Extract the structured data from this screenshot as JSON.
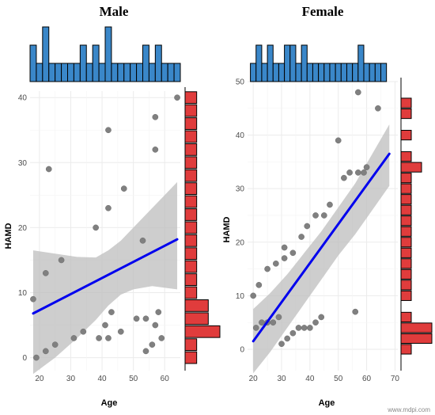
{
  "footer": {
    "watermark": "www.mdpi.com"
  },
  "chart_data": [
    {
      "type": "scatter",
      "title": "Male",
      "xlabel": "Age",
      "ylabel": "HAMD",
      "xlim": [
        17,
        65
      ],
      "ylim": [
        -2,
        41
      ],
      "xticks": [
        20,
        30,
        40,
        50,
        60
      ],
      "yticks": [
        0,
        10,
        20,
        30,
        40
      ],
      "grid": true,
      "point_color": "#808080",
      "line_color": "#0000ee",
      "band_color": "#bdbdbd",
      "points": [
        [
          18,
          9
        ],
        [
          19,
          0
        ],
        [
          22,
          13
        ],
        [
          22,
          1
        ],
        [
          23,
          29
        ],
        [
          25,
          2
        ],
        [
          27,
          15
        ],
        [
          31,
          3
        ],
        [
          34,
          4
        ],
        [
          38,
          20
        ],
        [
          39,
          3
        ],
        [
          41,
          5
        ],
        [
          42,
          23
        ],
        [
          42,
          35
        ],
        [
          42,
          3
        ],
        [
          43,
          7
        ],
        [
          46,
          4
        ],
        [
          47,
          26
        ],
        [
          51,
          6
        ],
        [
          53,
          18
        ],
        [
          54,
          6
        ],
        [
          54,
          1
        ],
        [
          56,
          2
        ],
        [
          57,
          5
        ],
        [
          57,
          32
        ],
        [
          57,
          37
        ],
        [
          58,
          7
        ],
        [
          59,
          3
        ],
        [
          64,
          40
        ]
      ],
      "fit": {
        "x": [
          18,
          64
        ],
        "y": [
          6.8,
          18.2
        ]
      },
      "ci": {
        "x": [
          18,
          25,
          32,
          38,
          42,
          46,
          50,
          56,
          64
        ],
        "upper": [
          16.5,
          16.0,
          15.5,
          15.4,
          16.5,
          18.0,
          20.0,
          23.0,
          27.0
        ],
        "lower": [
          -2.5,
          0.0,
          3.0,
          5.8,
          8.0,
          9.7,
          10.5,
          11.0,
          10.5
        ]
      },
      "top_hist": {
        "bins": [
          18,
          20,
          22,
          24,
          26,
          28,
          30,
          32,
          34,
          36,
          38,
          40,
          42,
          44,
          46,
          48,
          50,
          52,
          54,
          56,
          58,
          60,
          62,
          64
        ],
        "counts": [
          2,
          1,
          3,
          1,
          1,
          1,
          1,
          1,
          2,
          1,
          2,
          1,
          3,
          1,
          1,
          1,
          1,
          1,
          2,
          1,
          2,
          1,
          1,
          1
        ]
      },
      "side_hist": {
        "bins": [
          0,
          2,
          4,
          6,
          8,
          10,
          12,
          14,
          16,
          18,
          20,
          22,
          24,
          26,
          28,
          30,
          32,
          34,
          36,
          38,
          40
        ],
        "counts": [
          1,
          1,
          3,
          2,
          2,
          1,
          1,
          1,
          1,
          1,
          1,
          1,
          1,
          1,
          1,
          1,
          1,
          1,
          1,
          1,
          1
        ]
      }
    },
    {
      "type": "scatter",
      "title": "Female",
      "xlabel": "Age",
      "ylabel": "HAMD",
      "xlim": [
        18,
        71
      ],
      "ylim": [
        -4,
        50
      ],
      "xticks": [
        20,
        30,
        40,
        50,
        60,
        70
      ],
      "yticks": [
        0,
        10,
        20,
        30,
        40,
        50
      ],
      "grid": true,
      "point_color": "#808080",
      "line_color": "#0000ee",
      "band_color": "#bdbdbd",
      "points": [
        [
          20,
          10
        ],
        [
          21,
          4
        ],
        [
          22,
          12
        ],
        [
          23,
          5
        ],
        [
          25,
          15
        ],
        [
          25,
          5
        ],
        [
          27,
          5
        ],
        [
          28,
          16
        ],
        [
          29,
          6
        ],
        [
          30,
          1
        ],
        [
          31,
          19
        ],
        [
          31,
          17
        ],
        [
          32,
          2
        ],
        [
          34,
          3
        ],
        [
          34,
          18
        ],
        [
          36,
          4
        ],
        [
          37,
          21
        ],
        [
          38,
          4
        ],
        [
          39,
          23
        ],
        [
          40,
          4
        ],
        [
          42,
          25
        ],
        [
          42,
          5
        ],
        [
          44,
          6
        ],
        [
          45,
          25
        ],
        [
          47,
          27
        ],
        [
          50,
          39
        ],
        [
          52,
          32
        ],
        [
          54,
          33
        ],
        [
          56,
          7
        ],
        [
          57,
          48
        ],
        [
          57,
          33
        ],
        [
          59,
          33
        ],
        [
          60,
          34
        ],
        [
          64,
          45
        ]
      ],
      "fit": {
        "x": [
          20,
          68
        ],
        "y": [
          1.5,
          36.5
        ]
      },
      "ci": {
        "x": [
          20,
          26,
          32,
          38,
          44,
          50,
          56,
          62,
          68
        ],
        "upper": [
          7.5,
          10.5,
          14.0,
          18.0,
          22.0,
          26.5,
          31.0,
          36.5,
          42.0
        ],
        "lower": [
          -4.5,
          -0.5,
          4.0,
          8.5,
          13.0,
          17.5,
          21.5,
          26.0,
          30.5
        ]
      },
      "top_hist": {
        "bins": [
          20,
          22,
          24,
          26,
          28,
          30,
          32,
          34,
          36,
          38,
          40,
          42,
          44,
          46,
          48,
          50,
          52,
          54,
          56,
          58,
          60,
          62,
          64,
          66
        ],
        "counts": [
          1,
          2,
          1,
          2,
          1,
          1,
          2,
          2,
          1,
          2,
          1,
          1,
          1,
          1,
          1,
          1,
          1,
          1,
          1,
          2,
          1,
          1,
          1,
          1
        ]
      },
      "side_hist": {
        "bins": [
          0,
          2,
          4,
          6,
          8,
          10,
          12,
          14,
          16,
          18,
          20,
          22,
          24,
          26,
          28,
          30,
          32,
          34,
          36,
          38,
          40,
          42,
          44,
          46,
          48
        ],
        "counts": [
          1,
          3,
          3,
          1,
          0,
          1,
          1,
          1,
          1,
          1,
          1,
          1,
          1,
          1,
          1,
          1,
          1,
          2,
          1,
          0,
          1,
          0,
          1,
          1,
          0
        ]
      }
    }
  ]
}
